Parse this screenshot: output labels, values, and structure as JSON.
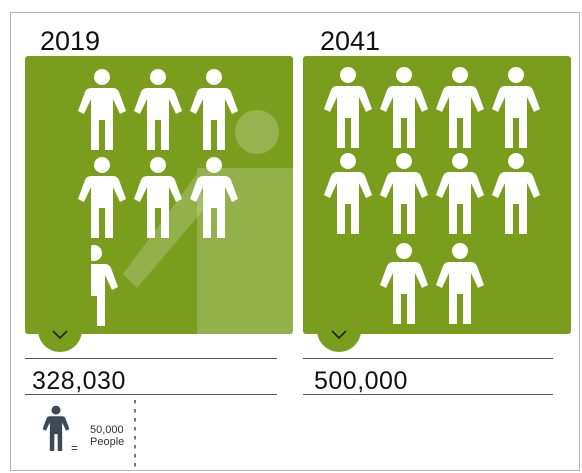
{
  "colors": {
    "panel": "#7a9d1e",
    "figure": "#ffffff",
    "legend_figure": "#3d4a55"
  },
  "left": {
    "year": "2019",
    "value": "328,030",
    "full_icons": 6,
    "partial_icon_fraction": 0.56,
    "chevron_icon": "chevron-down-icon"
  },
  "right": {
    "year": "2041",
    "value": "500,000",
    "full_icons": 10,
    "chevron_icon": "chevron-down-icon"
  },
  "legend": {
    "icon": "person-icon",
    "equals": "=",
    "number": "50,000",
    "unit": "People"
  }
}
